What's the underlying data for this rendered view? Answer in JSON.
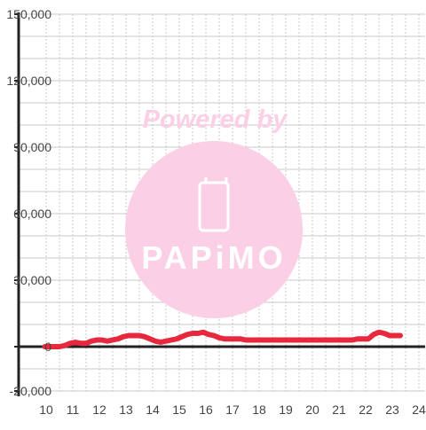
{
  "chart_data": {
    "type": "line",
    "title": "",
    "xlabel": "",
    "ylabel": "",
    "xlim": [
      10,
      24
    ],
    "ylim": [
      -20000,
      150000
    ],
    "x_ticks": [
      "10",
      "11",
      "12",
      "13",
      "14",
      "15",
      "16",
      "17",
      "18",
      "19",
      "20",
      "21",
      "22",
      "23",
      "24"
    ],
    "y_ticks": [
      "150,000",
      "120,000",
      "90,000",
      "60,000",
      "30,000",
      "0",
      "-20,000"
    ],
    "grid": true,
    "legend": "none",
    "series": [
      {
        "color": "#e8283c",
        "x": [
          9.95,
          10.1,
          10.3,
          10.5,
          10.7,
          10.9,
          11.1,
          11.3,
          11.5,
          11.7,
          11.9,
          12.1,
          12.3,
          12.5,
          12.7,
          12.9,
          13.1,
          13.3,
          13.5,
          13.7,
          13.9,
          14.1,
          14.3,
          14.5,
          14.7,
          14.9,
          15.1,
          15.3,
          15.5,
          15.7,
          15.9,
          16.1,
          16.3,
          16.5,
          16.7,
          16.9,
          17.1,
          17.3,
          17.5,
          17.7,
          18.0,
          18.5,
          19.0,
          19.5,
          20.0,
          20.5,
          21.0,
          21.5,
          21.7,
          21.9,
          22.1,
          22.3,
          22.5,
          22.7,
          22.9,
          23.1,
          23.3
        ],
        "y": [
          0,
          0,
          0,
          0,
          500,
          1500,
          2000,
          1500,
          1500,
          2500,
          3000,
          3000,
          2500,
          3000,
          3500,
          4500,
          5000,
          5000,
          5000,
          4500,
          3500,
          2500,
          2000,
          2500,
          3000,
          3500,
          4500,
          5500,
          6000,
          6000,
          6500,
          5500,
          5000,
          4000,
          3500,
          3500,
          3500,
          3500,
          3000,
          3000,
          3000,
          3000,
          3000,
          3000,
          3000,
          3000,
          3000,
          3000,
          3500,
          3500,
          3500,
          5500,
          6500,
          6000,
          5000,
          5000,
          5000
        ]
      }
    ]
  },
  "watermark": {
    "text": "Powered by",
    "logo_text": "PAPiMO",
    "color": "#fbd0e6"
  },
  "colors": {
    "grid": "#c8c8c8",
    "axis": "#222222",
    "zero_line": "#222222",
    "tick_text": "#444444",
    "background": "#ffffff"
  }
}
